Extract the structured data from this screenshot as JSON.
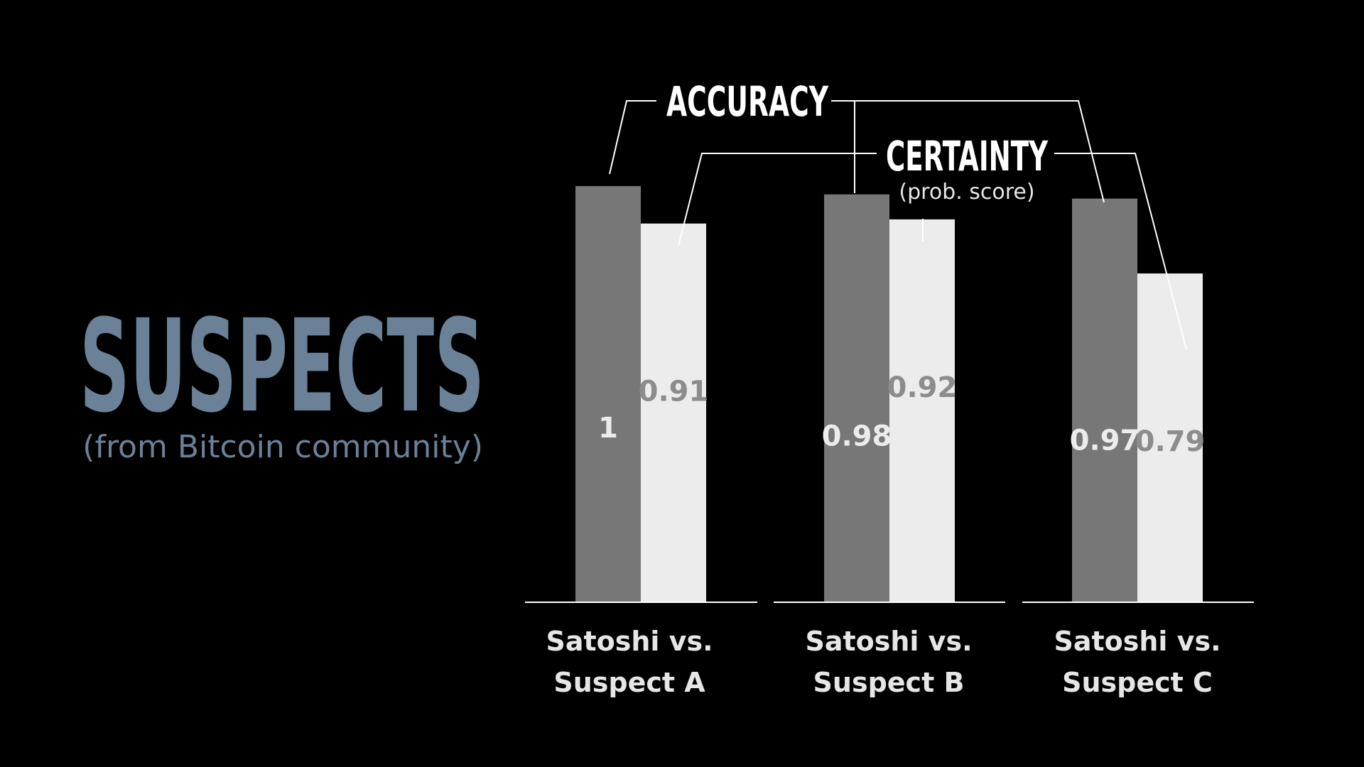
{
  "heading": {
    "title": "SUSPECTS",
    "subtitle": "(from Bitcoin community)"
  },
  "colors": {
    "background": "#000000",
    "title": "#6b8198",
    "accuracy_bar": "#777777",
    "certainty_bar": "#ececec",
    "accuracy_value_text": "#ececec",
    "certainty_value_text": "#8c8c8c",
    "axis": "#ffffff",
    "label_text": "#e6e6e6"
  },
  "chart_data": {
    "type": "bar",
    "categories": [
      [
        "Satoshi vs.",
        "Suspect A"
      ],
      [
        "Satoshi vs.",
        "Suspect B"
      ],
      [
        "Satoshi vs.",
        "Suspect C"
      ]
    ],
    "series": [
      {
        "name": "ACCURACY",
        "values": [
          1,
          0.98,
          0.97
        ],
        "labels": [
          "1",
          "0.98",
          "0.97"
        ]
      },
      {
        "name": "CERTAINTY",
        "subname": "(prob. score)",
        "values": [
          0.91,
          0.92,
          0.79
        ],
        "labels": [
          "0.91",
          "0.92",
          "0.79"
        ]
      }
    ],
    "ylim": [
      0,
      1.1
    ],
    "grid": false,
    "legend": "top, callout lines to bars"
  }
}
